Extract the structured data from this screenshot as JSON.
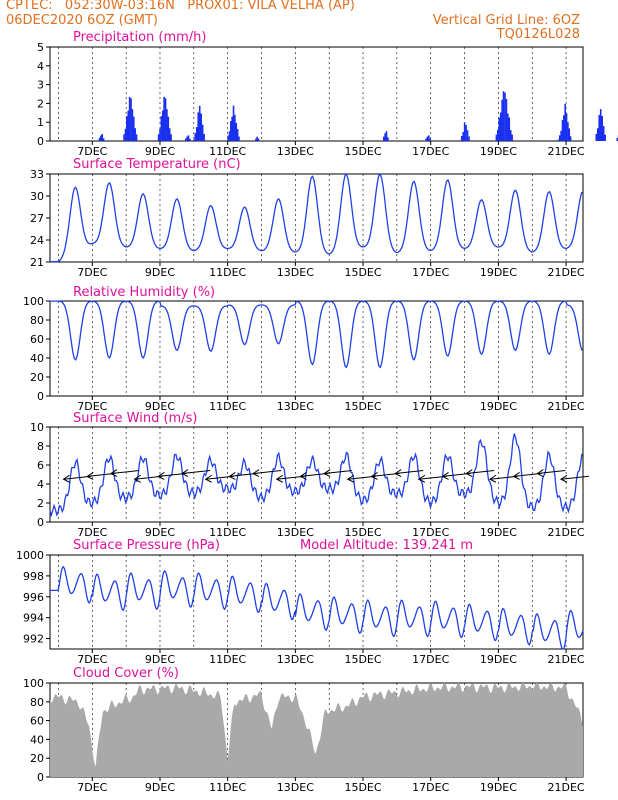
{
  "header": {
    "line1": "CPTEC:   052:30W-03:16N   PROX01: VILA VELHA (AP)",
    "line2_left": "06DEC2020 6OZ (GMT)",
    "line2_right": "Vertical Grid Line: 6OZ",
    "line3_right": "TQ0126L028"
  },
  "colors": {
    "header": "#e07020",
    "title": "#e0109a",
    "series": "#2040e8",
    "bar": "#1a2ff0",
    "cloud": "#a9a9a9",
    "wind": "#000000"
  },
  "chart_data": [
    {
      "type": "bar",
      "title": "Precipitation (mm/h)",
      "ylim": [
        0,
        5
      ],
      "yticks": [
        "0",
        "1",
        "2",
        "3",
        "4",
        "5"
      ],
      "xtick_labels": [
        "7DEC",
        "9DEC",
        "11DEC",
        "13DEC",
        "15DEC",
        "17DEC",
        "19DEC",
        "21DEC"
      ],
      "bursts": [
        {
          "t": 1.25,
          "peak": 0.5,
          "w": 0.2
        },
        {
          "t": 2.1,
          "peak": 2.8,
          "w": 0.45
        },
        {
          "t": 3.12,
          "peak": 2.8,
          "w": 0.45
        },
        {
          "t": 3.8,
          "peak": 0.4,
          "w": 0.2
        },
        {
          "t": 4.15,
          "peak": 2.2,
          "w": 0.35
        },
        {
          "t": 5.15,
          "peak": 2.0,
          "w": 0.4
        },
        {
          "t": 5.85,
          "peak": 0.3,
          "w": 0.15
        },
        {
          "t": 9.65,
          "peak": 0.7,
          "w": 0.2
        },
        {
          "t": 10.9,
          "peak": 0.4,
          "w": 0.2
        },
        {
          "t": 12.0,
          "peak": 1.2,
          "w": 0.3
        },
        {
          "t": 13.15,
          "peak": 3.2,
          "w": 0.55
        },
        {
          "t": 14.95,
          "peak": 2.1,
          "w": 0.4
        },
        {
          "t": 16.0,
          "peak": 2.0,
          "w": 0.35
        },
        {
          "t": 16.55,
          "peak": 0.5,
          "w": 0.2
        },
        {
          "t": 17.05,
          "peak": 2.0,
          "w": 0.3
        },
        {
          "t": 18.15,
          "peak": 0.5,
          "w": 0.2
        },
        {
          "t": 19.0,
          "peak": 2.3,
          "w": 0.35
        },
        {
          "t": 19.95,
          "peak": 2.7,
          "w": 0.45
        }
      ]
    },
    {
      "type": "line",
      "title": "Surface Temperature (nC)",
      "ylim": [
        21,
        33
      ],
      "yticks": [
        "21",
        "24",
        "27",
        "30",
        "33"
      ],
      "xtick_labels": [
        "7DEC",
        "9DEC",
        "11DEC",
        "13DEC",
        "15DEC",
        "17DEC",
        "19DEC",
        "21DEC"
      ],
      "maxima": [
        31.2,
        31.8,
        30.3,
        29.6,
        28.7,
        28.5,
        29.6,
        32.7,
        33.0,
        33.0,
        32.0,
        32.2,
        29.5,
        30.8,
        30.6,
        30.7,
        27.9
      ],
      "minima": [
        21.0,
        23.5,
        23.0,
        22.8,
        22.5,
        22.8,
        22.5,
        22.3,
        22.0,
        23.0,
        22.2,
        22.5,
        22.8,
        23.0,
        22.3,
        22.8,
        23.2
      ]
    },
    {
      "type": "line",
      "title": "Relative Humidity (%)",
      "ylim": [
        0,
        100
      ],
      "yticks": [
        "0",
        "20",
        "40",
        "60",
        "80",
        "100"
      ],
      "xtick_labels": [
        "7DEC",
        "9DEC",
        "11DEC",
        "13DEC",
        "15DEC",
        "17DEC",
        "19DEC",
        "21DEC"
      ],
      "minima": [
        38,
        40,
        40,
        48,
        47,
        54,
        55,
        33,
        30,
        30,
        38,
        42,
        44,
        48,
        44,
        47
      ],
      "maxima": [
        100,
        100,
        100,
        95,
        95,
        96,
        96,
        100,
        100,
        100,
        100,
        100,
        100,
        100,
        100,
        96,
        85
      ]
    },
    {
      "type": "line",
      "title": "Surface Wind (m/s)",
      "ylim": [
        0,
        10
      ],
      "yticks": [
        "0",
        "2",
        "4",
        "6",
        "8",
        "10"
      ],
      "xtick_labels": [
        "7DEC",
        "9DEC",
        "11DEC",
        "13DEC",
        "15DEC",
        "17DEC",
        "19DEC",
        "21DEC"
      ],
      "maxima": [
        6.3,
        6.8,
        6.8,
        7.0,
        6.5,
        6.2,
        6.8,
        6.5,
        7.0,
        6.5,
        7.0,
        7.0,
        8.5,
        9.0,
        7.0,
        7.0,
        7.0
      ],
      "minima": [
        1.2,
        2.0,
        2.5,
        2.8,
        3.0,
        3.5,
        2.5,
        3.2,
        3.5,
        2.2,
        3.0,
        2.0,
        3.0,
        2.0,
        1.5,
        1.5
      ]
    },
    {
      "type": "line",
      "title": "Surface Pressure (hPa)",
      "annotation": "Model Altitude: 139.241 m",
      "ylim": [
        991,
        1000
      ],
      "yticks": [
        "992",
        "994",
        "996",
        "998",
        "1000"
      ],
      "xtick_labels": [
        "7DEC",
        "9DEC",
        "11DEC",
        "13DEC",
        "15DEC",
        "17DEC",
        "19DEC",
        "21DEC"
      ],
      "base": [
        997.2,
        996.5,
        996.6,
        996.8,
        996.6,
        996.3,
        995.6,
        994.6,
        994.3,
        994.0,
        994.0,
        993.9,
        993.6,
        993.2,
        992.7,
        993.0
      ],
      "amp": 1.9
    },
    {
      "type": "area",
      "title": "Cloud Cover (%)",
      "ylim": [
        0,
        100
      ],
      "yticks": [
        "0",
        "20",
        "40",
        "60",
        "80",
        "100"
      ],
      "xtick_labels": [
        "7DEC",
        "9DEC",
        "11DEC",
        "13DEC",
        "15DEC",
        "17DEC",
        "19DEC",
        "21DEC"
      ],
      "profile": [
        [
          0,
          85
        ],
        [
          0.6,
          80
        ],
        [
          0.9,
          55
        ],
        [
          1.1,
          10
        ],
        [
          1.3,
          70
        ],
        [
          1.7,
          78
        ],
        [
          2.2,
          85
        ],
        [
          2.4,
          93
        ],
        [
          3.5,
          95
        ],
        [
          4.3,
          90
        ],
        [
          4.8,
          85
        ],
        [
          5.0,
          20
        ],
        [
          5.2,
          80
        ],
        [
          6.0,
          88
        ],
        [
          6.3,
          50
        ],
        [
          6.5,
          85
        ],
        [
          7.0,
          85
        ],
        [
          7.3,
          60
        ],
        [
          7.6,
          25
        ],
        [
          7.9,
          70
        ],
        [
          8.5,
          75
        ],
        [
          9.0,
          85
        ],
        [
          9.5,
          88
        ],
        [
          10,
          90
        ],
        [
          11,
          95
        ],
        [
          12,
          96
        ],
        [
          13,
          95
        ],
        [
          14,
          97
        ],
        [
          15,
          95
        ],
        [
          15.5,
          60
        ],
        [
          15.8,
          88
        ],
        [
          16.5,
          92
        ],
        [
          17,
          95
        ]
      ]
    }
  ]
}
